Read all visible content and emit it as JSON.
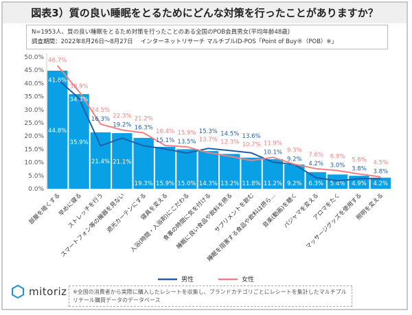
{
  "title": "図表3）質の良い睡眠をとるためにどんな対策を行ったことがありますか？",
  "info": {
    "line1": "N=1953人、質の良い睡眠をとるため対策を行ったことのある全国のPOB会員男女(平均年齢48歳)",
    "line2": "調査期間：2022年8月26日～8月27日　 インターネットリサーチ マルチプルID-POS「Point of Buy®（POB）※」"
  },
  "footer": {
    "logo": "mitoriz",
    "note": "※全国の消費者から実際に購入したレシートを収集し、ブランドカテゴリごとにレシートを集計したマルチプルリテール購買データのデータベース"
  },
  "colors": {
    "bar": "#0aa0e6",
    "male": "#1f5fa8",
    "female": "#f08080"
  },
  "chart_data": {
    "type": "bar+line",
    "ylim": [
      0,
      50
    ],
    "yticks": [
      "0.0%",
      "5.0%",
      "10.0%",
      "15.0%",
      "20.0%",
      "25.0%",
      "30.0%",
      "35.0%",
      "40.0%",
      "45.0%",
      "50.0%"
    ],
    "grid": false,
    "legend": "bottom",
    "categories": [
      "部屋を暗くする",
      "早めに寝る",
      "ストレッチを行う",
      "スマートフォン等の機器を見ない",
      "遮光カーテンにする",
      "寝具を変える",
      "入浴(時間・入浴剤)にこだわる",
      "食事の時間に気を付ける",
      "睡眠に良い食品や飲料を摂る",
      "サプリメントを飲む",
      "睡眠を阻害する食品や飲料は摂ら…",
      "音楽(動画)を聴く",
      "パジャマを変える",
      "アロマをたく",
      "マッサージグッズを使用する",
      "照明を変える"
    ],
    "bar_values": [
      44.8,
      35.9,
      21.4,
      21.1,
      19.3,
      15.9,
      15.0,
      14.3,
      13.2,
      11.8,
      11.2,
      9.2,
      6.3,
      5.4,
      4.9,
      4.2
    ],
    "series": [
      {
        "name": "男性",
        "values": [
          41.6,
          34.3,
          16.3,
          19.2,
          16.3,
          15.1,
          13.5,
          15.3,
          14.5,
          13.6,
          10.1,
          9.2,
          4.2,
          3.0,
          3.8,
          3.8
        ]
      },
      {
        "name": "女性",
        "values": [
          46.7,
          36.9,
          24.5,
          22.3,
          21.2,
          16.4,
          15.9,
          13.7,
          12.3,
          10.7,
          11.9,
          9.3,
          7.6,
          6.9,
          5.6,
          4.5
        ]
      }
    ]
  }
}
